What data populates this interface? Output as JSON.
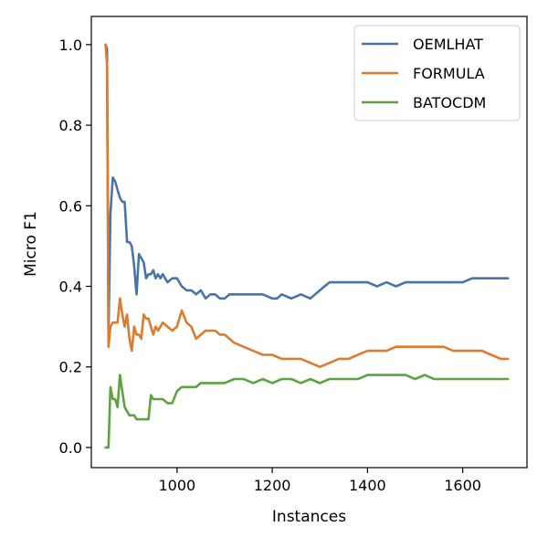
{
  "chart_data": {
    "type": "line",
    "xlabel": "Instances",
    "ylabel": "Micro F1",
    "xlim": [
      820,
      1735
    ],
    "ylim": [
      -0.05,
      1.07
    ],
    "x_ticks": [
      1000,
      1200,
      1400,
      1600
    ],
    "y_ticks": [
      0.0,
      0.2,
      0.4,
      0.6,
      0.8,
      1.0
    ],
    "x_tick_labels": [
      "1000",
      "1200",
      "1400",
      "1600"
    ],
    "y_tick_labels": [
      "0.0",
      "0.2",
      "0.4",
      "0.6",
      "0.8",
      "1.0"
    ],
    "grid": false,
    "legend_position": "top-right",
    "series": [
      {
        "name": "OEMLHAT",
        "color": "#4a74a8",
        "x": [
          850,
          853,
          856,
          860,
          865,
          870,
          875,
          880,
          885,
          890,
          895,
          900,
          905,
          910,
          915,
          920,
          925,
          930,
          935,
          940,
          945,
          950,
          955,
          960,
          965,
          970,
          980,
          990,
          1000,
          1010,
          1020,
          1030,
          1040,
          1050,
          1060,
          1070,
          1080,
          1090,
          1100,
          1110,
          1120,
          1140,
          1160,
          1180,
          1200,
          1210,
          1220,
          1240,
          1260,
          1280,
          1290,
          1300,
          1310,
          1320,
          1340,
          1360,
          1380,
          1400,
          1420,
          1440,
          1460,
          1480,
          1500,
          1520,
          1540,
          1560,
          1580,
          1600,
          1620,
          1640,
          1660,
          1680,
          1695
        ],
        "y": [
          1.0,
          0.99,
          0.28,
          0.58,
          0.67,
          0.66,
          0.64,
          0.62,
          0.61,
          0.61,
          0.51,
          0.51,
          0.5,
          0.45,
          0.38,
          0.48,
          0.47,
          0.46,
          0.42,
          0.43,
          0.43,
          0.44,
          0.42,
          0.43,
          0.42,
          0.43,
          0.41,
          0.42,
          0.42,
          0.4,
          0.39,
          0.39,
          0.38,
          0.39,
          0.37,
          0.38,
          0.38,
          0.37,
          0.37,
          0.38,
          0.38,
          0.38,
          0.38,
          0.38,
          0.37,
          0.37,
          0.38,
          0.37,
          0.38,
          0.37,
          0.38,
          0.39,
          0.4,
          0.41,
          0.41,
          0.41,
          0.41,
          0.41,
          0.4,
          0.41,
          0.4,
          0.41,
          0.41,
          0.41,
          0.41,
          0.41,
          0.41,
          0.41,
          0.42,
          0.42,
          0.42,
          0.42,
          0.42
        ]
      },
      {
        "name": "FORMULA",
        "color": "#de7b2d",
        "x": [
          850,
          853,
          856,
          860,
          865,
          870,
          875,
          880,
          885,
          890,
          895,
          900,
          905,
          910,
          915,
          920,
          925,
          930,
          935,
          940,
          945,
          950,
          955,
          960,
          965,
          970,
          980,
          990,
          1000,
          1010,
          1020,
          1030,
          1040,
          1050,
          1060,
          1070,
          1080,
          1090,
          1100,
          1110,
          1120,
          1140,
          1160,
          1180,
          1200,
          1220,
          1240,
          1260,
          1280,
          1300,
          1320,
          1340,
          1360,
          1380,
          1400,
          1420,
          1440,
          1460,
          1480,
          1500,
          1520,
          1540,
          1560,
          1580,
          1600,
          1620,
          1640,
          1660,
          1680,
          1695
        ],
        "y": [
          1.0,
          0.95,
          0.25,
          0.3,
          0.31,
          0.31,
          0.31,
          0.37,
          0.33,
          0.3,
          0.33,
          0.27,
          0.24,
          0.3,
          0.28,
          0.28,
          0.27,
          0.33,
          0.32,
          0.32,
          0.3,
          0.28,
          0.3,
          0.29,
          0.3,
          0.31,
          0.3,
          0.29,
          0.3,
          0.34,
          0.31,
          0.3,
          0.27,
          0.28,
          0.29,
          0.29,
          0.29,
          0.28,
          0.28,
          0.27,
          0.26,
          0.25,
          0.24,
          0.23,
          0.23,
          0.22,
          0.22,
          0.22,
          0.21,
          0.2,
          0.21,
          0.22,
          0.22,
          0.23,
          0.24,
          0.24,
          0.24,
          0.25,
          0.25,
          0.25,
          0.25,
          0.25,
          0.25,
          0.24,
          0.24,
          0.24,
          0.24,
          0.23,
          0.22,
          0.22
        ]
      },
      {
        "name": "BATOCDM",
        "color": "#5fa241",
        "x": [
          850,
          853,
          856,
          860,
          865,
          870,
          875,
          880,
          885,
          890,
          895,
          900,
          905,
          910,
          915,
          920,
          925,
          930,
          935,
          940,
          945,
          950,
          960,
          970,
          980,
          990,
          1000,
          1010,
          1020,
          1030,
          1040,
          1050,
          1060,
          1080,
          1100,
          1120,
          1140,
          1160,
          1180,
          1200,
          1220,
          1240,
          1260,
          1280,
          1300,
          1320,
          1340,
          1360,
          1380,
          1400,
          1420,
          1440,
          1460,
          1480,
          1500,
          1520,
          1540,
          1560,
          1580,
          1600,
          1620,
          1640,
          1660,
          1680,
          1695
        ],
        "y": [
          0.0,
          0.0,
          0.0,
          0.15,
          0.12,
          0.12,
          0.1,
          0.18,
          0.14,
          0.1,
          0.09,
          0.08,
          0.08,
          0.08,
          0.07,
          0.07,
          0.07,
          0.07,
          0.07,
          0.07,
          0.13,
          0.12,
          0.12,
          0.12,
          0.11,
          0.11,
          0.14,
          0.15,
          0.15,
          0.15,
          0.15,
          0.16,
          0.16,
          0.16,
          0.16,
          0.17,
          0.17,
          0.16,
          0.17,
          0.16,
          0.17,
          0.17,
          0.16,
          0.17,
          0.16,
          0.17,
          0.17,
          0.17,
          0.17,
          0.18,
          0.18,
          0.18,
          0.18,
          0.18,
          0.17,
          0.18,
          0.17,
          0.17,
          0.17,
          0.17,
          0.17,
          0.17,
          0.17,
          0.17,
          0.17
        ]
      }
    ]
  }
}
